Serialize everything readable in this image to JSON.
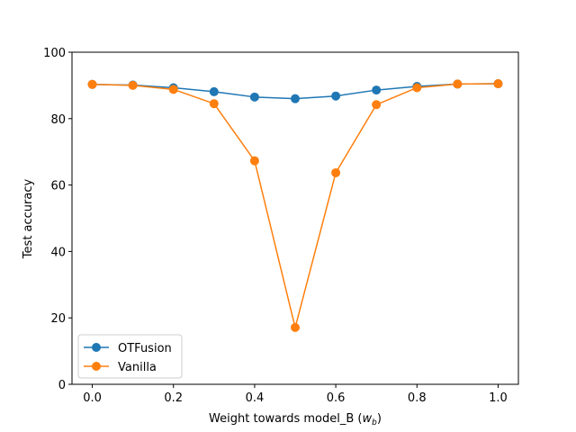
{
  "chart_data": {
    "type": "line",
    "xlabel": "Weight towards model_B (",
    "xlabel_var": "w",
    "xlabel_sub": "b",
    "xlabel_close": ")",
    "ylabel": "Test accuracy",
    "xlim": [
      -0.05,
      1.05
    ],
    "ylim": [
      0,
      100
    ],
    "xticks": [
      0.0,
      0.2,
      0.4,
      0.6,
      0.8,
      1.0
    ],
    "xtick_labels": [
      "0.0",
      "0.2",
      "0.4",
      "0.6",
      "0.8",
      "1.0"
    ],
    "yticks": [
      0,
      20,
      40,
      60,
      80,
      100
    ],
    "ytick_labels": [
      "0",
      "20",
      "40",
      "60",
      "80",
      "100"
    ],
    "x": [
      0.0,
      0.1,
      0.2,
      0.3,
      0.4,
      0.5,
      0.6,
      0.7,
      0.8,
      0.9,
      1.0
    ],
    "series": [
      {
        "name": "OTFusion",
        "color": "#1f77b4",
        "values": [
          90.3,
          90.1,
          89.3,
          88.1,
          86.5,
          86.0,
          86.8,
          88.6,
          89.7,
          90.4,
          90.5
        ]
      },
      {
        "name": "Vanilla",
        "color": "#ff7f0e",
        "values": [
          90.3,
          90.0,
          88.8,
          84.5,
          67.3,
          17.1,
          63.7,
          84.2,
          89.3,
          90.4,
          90.5
        ]
      }
    ],
    "legend_position": "lower-left",
    "grid": false
  }
}
